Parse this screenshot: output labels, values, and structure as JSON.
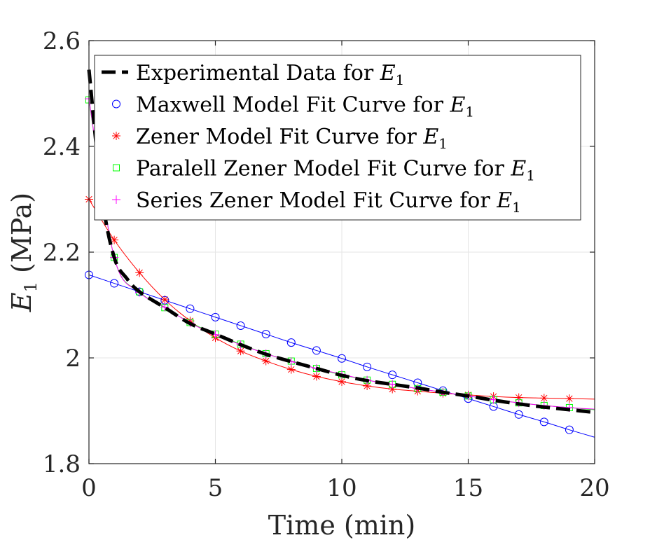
{
  "chart_data": {
    "type": "line",
    "xlabel": "Time (min)",
    "ylabel": "E",
    "ylabel_subscript": "1",
    "ylabel_unit": " (MPa)",
    "xlim": [
      0,
      20
    ],
    "ylim": [
      1.8,
      2.6
    ],
    "xticks": [
      0,
      5,
      10,
      15,
      20
    ],
    "yticks": [
      1.8,
      2.0,
      2.2,
      2.4,
      2.6
    ],
    "xtick_labels": [
      "0",
      "5",
      "10",
      "15",
      "20"
    ],
    "ytick_labels": [
      "1.8",
      "2",
      "2.2",
      "2.4",
      "2.6"
    ],
    "grid": true,
    "legend_position": "top-right",
    "series": [
      {
        "name": "Experimental Data for E",
        "name_subscript": "1",
        "style": "dashed",
        "color": "#000000",
        "x": [
          0,
          0.5,
          1,
          1.5,
          2,
          3,
          4,
          5,
          6,
          7,
          8,
          9,
          10,
          11,
          12,
          13,
          14,
          15,
          16,
          17,
          18,
          19,
          20
        ],
        "y": [
          2.545,
          2.31,
          2.19,
          2.15,
          2.125,
          2.095,
          2.065,
          2.045,
          2.025,
          2.007,
          1.993,
          1.98,
          1.967,
          1.957,
          1.95,
          1.943,
          1.935,
          1.928,
          1.92,
          1.913,
          1.907,
          1.902,
          1.897
        ]
      },
      {
        "name": "Maxwell Model Fit Curve for E",
        "name_subscript": "1",
        "marker": "circle",
        "color": "#0000ff",
        "x": [
          0,
          1,
          2,
          3,
          4,
          5,
          6,
          7,
          8,
          9,
          10,
          11,
          12,
          13,
          14,
          15,
          16,
          17,
          18,
          19,
          20
        ],
        "y": [
          2.157,
          2.141,
          2.125,
          2.109,
          2.093,
          2.077,
          2.061,
          2.045,
          2.029,
          2.014,
          1.999,
          1.983,
          1.968,
          1.953,
          1.938,
          1.923,
          1.908,
          1.893,
          1.879,
          1.864,
          1.85
        ]
      },
      {
        "name": "Zener Model Fit Curve for E",
        "name_subscript": "1",
        "marker": "asterisk",
        "color": "#ff0000",
        "x": [
          0,
          1,
          2,
          3,
          4,
          5,
          6,
          7,
          8,
          9,
          10,
          11,
          12,
          13,
          14,
          15,
          16,
          17,
          18,
          19,
          20
        ],
        "y": [
          2.3,
          2.223,
          2.161,
          2.11,
          2.07,
          2.038,
          2.013,
          1.994,
          1.978,
          1.965,
          1.955,
          1.947,
          1.941,
          1.937,
          1.933,
          1.93,
          1.927,
          1.925,
          1.924,
          1.923,
          1.922
        ]
      },
      {
        "name": "Paralell Zener Model Fit Curve for E",
        "name_subscript": "1",
        "marker": "square",
        "color": "#00ff00",
        "x": [
          0,
          1,
          2,
          3,
          4,
          5,
          6,
          7,
          8,
          9,
          10,
          11,
          12,
          13,
          14,
          15,
          16,
          17,
          18,
          19,
          20
        ],
        "y": [
          2.488,
          2.19,
          2.125,
          2.095,
          2.067,
          2.045,
          2.026,
          2.008,
          1.994,
          1.98,
          1.968,
          1.958,
          1.95,
          1.942,
          1.935,
          1.928,
          1.921,
          1.915,
          1.91,
          1.906,
          1.902
        ]
      },
      {
        "name": "Series Zener Model Fit Curve for E",
        "name_subscript": "1",
        "marker": "plus",
        "color": "#ff00ff",
        "x": [
          0,
          1,
          2,
          3,
          4,
          5,
          6,
          7,
          8,
          9,
          10,
          11,
          12,
          13,
          14,
          15,
          16,
          17,
          18,
          19,
          20
        ],
        "y": [
          2.49,
          2.19,
          2.124,
          2.096,
          2.066,
          2.044,
          2.025,
          2.008,
          1.993,
          1.98,
          1.969,
          1.958,
          1.95,
          1.942,
          1.935,
          1.928,
          1.921,
          1.915,
          1.91,
          1.906,
          1.903
        ]
      }
    ]
  }
}
